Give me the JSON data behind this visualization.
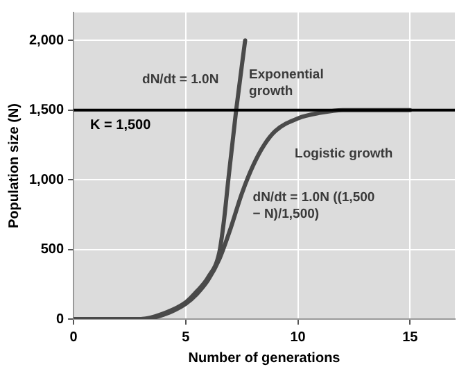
{
  "chart_data": {
    "type": "line",
    "xlabel": "Number of generations",
    "ylabel": "Population size (N)",
    "xlim": [
      0,
      17
    ],
    "xticks": [
      0,
      5,
      10,
      15
    ],
    "ylim": [
      0,
      2200
    ],
    "yticks": [
      0,
      500,
      {
        "value": 1000,
        "label": "1,000"
      },
      {
        "value": 1500,
        "label": "1,500"
      },
      {
        "value": 2000,
        "label": "2,000"
      }
    ],
    "grid": true,
    "marker": "none",
    "line_style": "solid",
    "series": [
      {
        "color": "#4a4a4a",
        "x": [
          0,
          2.5,
          3,
          4,
          5,
          5.5,
          6,
          6.5,
          6.7,
          6.9,
          7.25,
          7.65
        ],
        "values": [
          0,
          0,
          0,
          40,
          120,
          200,
          300,
          480,
          700,
          1000,
          1500,
          2000
        ]
      },
      {
        "color": "#4a4a4a",
        "x": [
          0,
          3,
          4,
          5,
          5.5,
          6,
          6.5,
          7,
          7.5,
          8,
          8.5,
          9,
          10,
          11,
          12,
          15
        ],
        "values": [
          0,
          0,
          30,
          110,
          180,
          280,
          430,
          650,
          900,
          1100,
          1250,
          1350,
          1440,
          1480,
          1500,
          1500
        ]
      }
    ],
    "ref_lines": [
      {
        "axis": "y",
        "value": 1500,
        "label": "K = 1,500",
        "color": "#000000"
      }
    ],
    "annotations": [
      "dN/dt = 1.0N",
      "Exponential growth",
      "Logistic growth",
      "dN/dt = 1.0N ((1,500 − N)/1,500)"
    ]
  }
}
